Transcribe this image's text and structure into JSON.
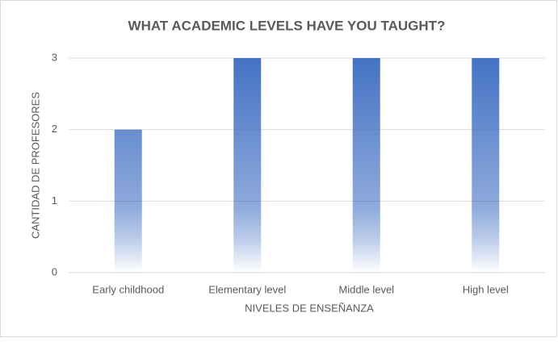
{
  "chart_data": {
    "type": "bar",
    "title": "WHAT ACADEMIC LEVELS HAVE YOU TAUGHT?",
    "xlabel": "NIVELES DE ENSEÑANZA",
    "ylabel": "CANTIDAD DE PROFESORES",
    "categories": [
      "Early childhood",
      "Elementary level",
      "Middle level",
      "High level"
    ],
    "values": [
      2,
      3,
      3,
      3
    ],
    "color": "#4472c4",
    "ylim": [
      0,
      3
    ],
    "yticks": [
      0,
      1,
      2,
      3
    ],
    "grid": true
  }
}
